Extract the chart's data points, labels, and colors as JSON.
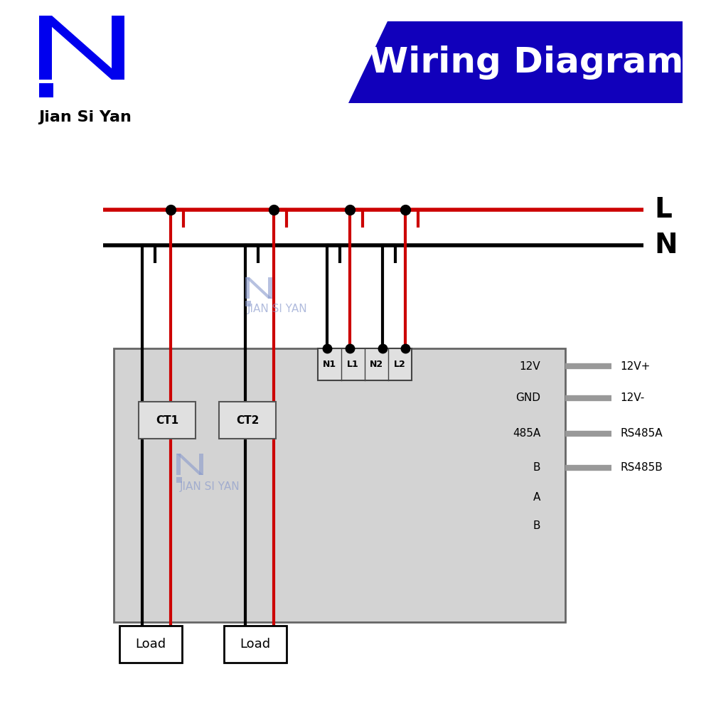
{
  "bg_color": "#ffffff",
  "logo_color": "#0000ee",
  "brand_name": "Jian Si Yan",
  "banner_color": "#1100bb",
  "title_text": "Wiring Diagram",
  "title_color": "#ffffff",
  "L_color": "#cc0000",
  "N_color": "#000000",
  "red_wire": "#cc0000",
  "black_wire": "#000000",
  "box_fill": "#d3d3d3",
  "box_edge": "#666666",
  "conn_color": "#999999",
  "wm_color": "#8899cc",
  "dot_color": "#000000",
  "right_inner": [
    "12V",
    "GND",
    "485A",
    "B",
    "A",
    "B"
  ],
  "right_outer": [
    "12V+",
    "12V-",
    "RS485A",
    "RS485B"
  ],
  "term_labels": [
    "N1",
    "L1",
    "N2",
    "L2"
  ],
  "ct_labels": [
    "CT1",
    "CT2"
  ],
  "load_labels": [
    "Load",
    "Load"
  ]
}
